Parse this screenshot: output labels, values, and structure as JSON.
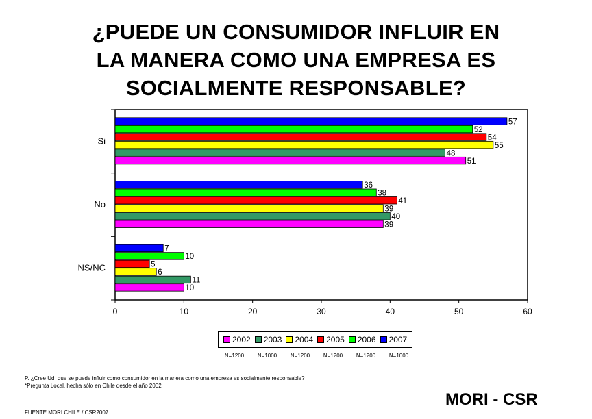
{
  "title_lines": [
    "¿PUEDE UN CONSUMIDOR INFLUIR EN",
    "LA MANERA COMO UNA EMPRESA ES",
    "SOCIALMENTE RESPONSABLE?"
  ],
  "chart_data": {
    "type": "bar",
    "orientation": "horizontal",
    "categories": [
      "Si",
      "No",
      "NS/NC"
    ],
    "series": [
      {
        "name": "2002",
        "color": "#ff00ff",
        "values": [
          51,
          39,
          10
        ]
      },
      {
        "name": "2003",
        "color": "#339966",
        "values": [
          48,
          40,
          11
        ]
      },
      {
        "name": "2004",
        "color": "#ffff00",
        "values": [
          55,
          39,
          6
        ]
      },
      {
        "name": "2005",
        "color": "#ff0000",
        "values": [
          54,
          41,
          5
        ]
      },
      {
        "name": "2006",
        "color": "#00ff00",
        "values": [
          52,
          38,
          10
        ]
      },
      {
        "name": "2007",
        "color": "#0000ff",
        "values": [
          57,
          36,
          7
        ]
      }
    ],
    "xlim": [
      0,
      60
    ],
    "xticks": [
      0,
      10,
      20,
      30,
      40,
      50,
      60
    ],
    "legend_position": "bottom",
    "grid": false
  },
  "sample_sizes": [
    "N=1200",
    "N=1000",
    "N=1200",
    "N=1200",
    "N=1200",
    "N=1000"
  ],
  "footnote": {
    "question": "P. ¿Cree Ud. que se puede influir como consumidor en la manera como una empresa es socialmente responsable?",
    "note": "*Pregunta Local, hecha sólo en Chile desde el año 2002"
  },
  "source": "FUENTE MORI CHILE / CSR2007",
  "brand": "MORI - CSR"
}
